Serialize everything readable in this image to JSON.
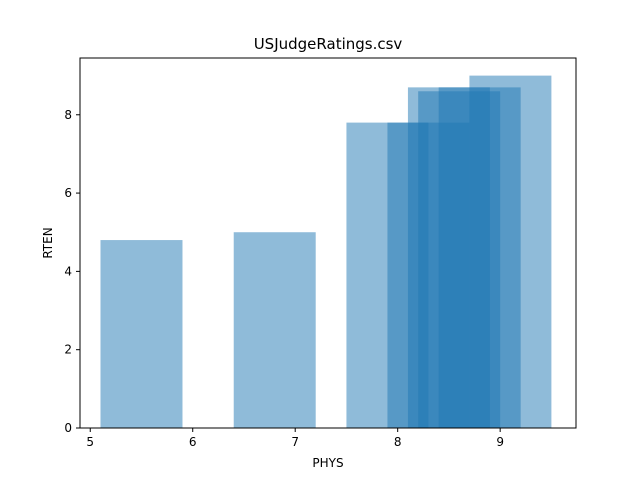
{
  "chart_data": {
    "type": "bar",
    "title": "USJudgeRatings.csv",
    "xlabel": "PHYS",
    "ylabel": "RTEN",
    "xlim": [
      4.9,
      9.74
    ],
    "ylim": [
      0,
      9.45
    ],
    "xticks": [
      5,
      6,
      7,
      8,
      9
    ],
    "yticks": [
      0,
      2,
      4,
      6,
      8
    ],
    "bar_width": 0.8,
    "bar_color": "#1f77b4",
    "bar_opacity": 0.5,
    "grid": false,
    "bars": [
      {
        "x": 5.5,
        "value": 4.8
      },
      {
        "x": 6.8,
        "value": 5.0
      },
      {
        "x": 7.9,
        "value": 7.8
      },
      {
        "x": 8.3,
        "value": 7.8
      },
      {
        "x": 8.5,
        "value": 8.7
      },
      {
        "x": 8.6,
        "value": 8.6
      },
      {
        "x": 8.8,
        "value": 8.7
      },
      {
        "x": 9.1,
        "value": 9.0
      }
    ]
  }
}
